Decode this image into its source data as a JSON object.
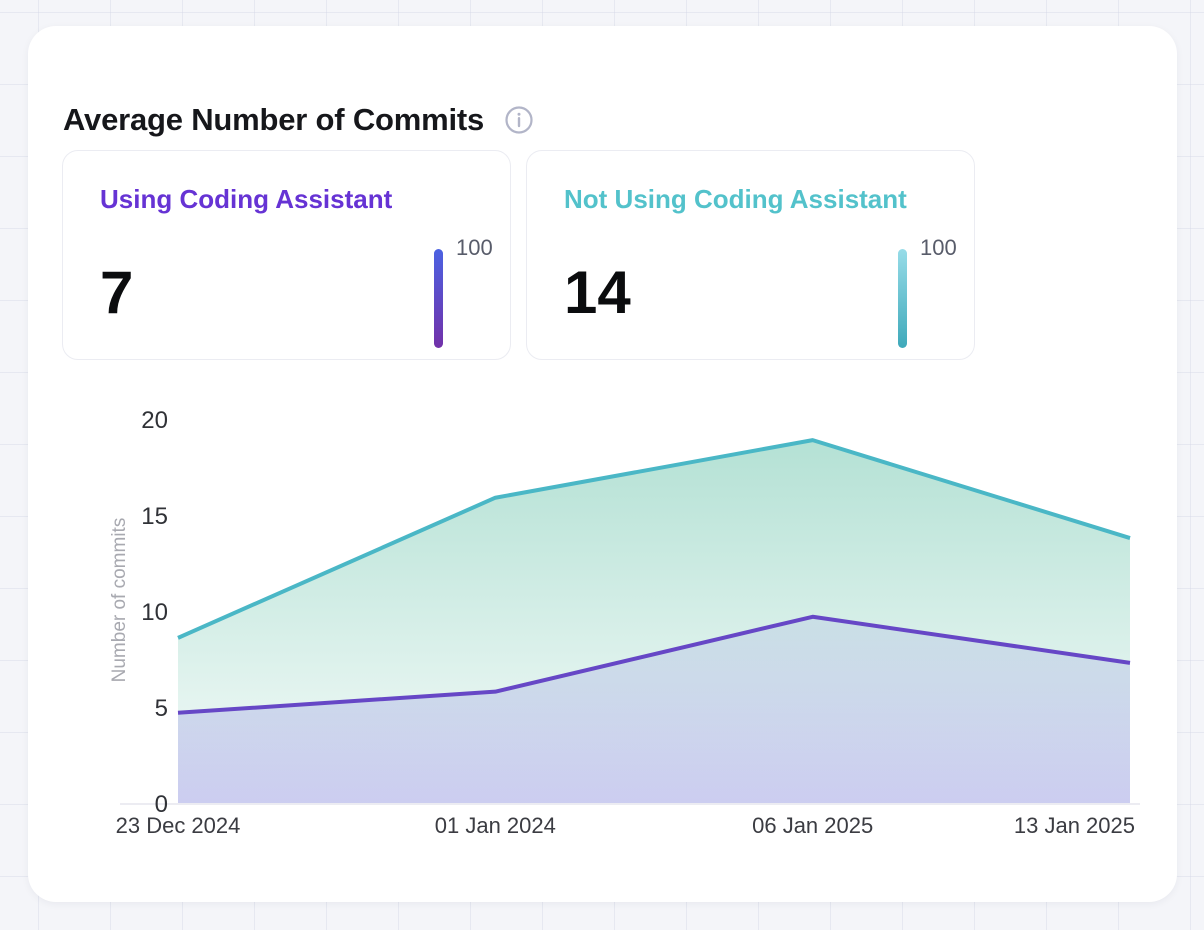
{
  "card": {
    "title": "Average Number of Commits",
    "info_icon": "info-circle",
    "info_icon_color": "#b2b5c8"
  },
  "stats": [
    {
      "label": "Using Coding Assistant",
      "value": "7",
      "scale_max": "100",
      "accent": "#6633d4",
      "bar_gradient": [
        "#4b62e2",
        "#7231a9"
      ]
    },
    {
      "label": "Not Using Coding Assistant",
      "value": "14",
      "scale_max": "100",
      "accent": "#53c2cb",
      "bar_gradient": [
        "#97dce8",
        "#3fa9ba"
      ]
    }
  ],
  "chart_data": {
    "type": "area",
    "x": [
      "23 Dec 2024",
      "01 Jan 2024",
      "06 Jan 2025",
      "13 Jan 2025"
    ],
    "series": [
      {
        "name": "Using Coding Assistant",
        "values": [
          4.7,
          5.8,
          9.7,
          7.3
        ],
        "color": "#6647c6",
        "fill": "#7a73dc",
        "fill_opacity_top": 0.12,
        "fill_opacity_bottom": 0.34
      },
      {
        "name": "Not Using Coding Assistant",
        "values": [
          8.6,
          15.9,
          18.9,
          13.8
        ],
        "color": "#4ab7c6",
        "fill": "#4db89a",
        "fill_opacity_top": 0.42,
        "fill_opacity_bottom": 0.05
      }
    ],
    "ylabel": "Number of commits",
    "yticks": [
      0,
      5,
      10,
      15,
      20
    ],
    "ylim": [
      0,
      20
    ],
    "grid": false,
    "legend": "none",
    "axis_line_color": "#e5e6ed"
  }
}
